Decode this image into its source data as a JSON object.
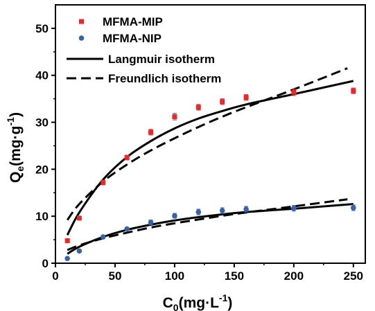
{
  "chart_data": {
    "type": "scatter",
    "xlabel": {
      "main": "C",
      "sub": "0",
      "rest": "(mg·L",
      "sup": "-1",
      "end": ")"
    },
    "ylabel": {
      "main": "Q",
      "sub": "e",
      "rest": "(mg·g",
      "sup": "-1",
      "end": ")"
    },
    "xlim": [
      0,
      260
    ],
    "ylim": [
      0,
      55
    ],
    "xticks": [
      0,
      50,
      100,
      150,
      200,
      250
    ],
    "yticks": [
      0,
      10,
      20,
      30,
      40,
      50
    ],
    "legend_position": "top-left",
    "grid": false,
    "series": [
      {
        "name": "MFMA-MIP",
        "kind": "points",
        "marker": "square",
        "color": "#e8282b",
        "x": [
          10,
          20,
          40,
          60,
          80,
          100,
          120,
          140,
          160,
          200,
          250
        ],
        "y": [
          4.8,
          9.6,
          17.2,
          22.5,
          27.9,
          31.2,
          33.2,
          34.4,
          35.3,
          36.4,
          36.7
        ],
        "err": [
          0.3,
          0.3,
          0.5,
          0.5,
          0.6,
          0.7,
          0.6,
          0.6,
          0.6,
          0.7,
          0.6
        ]
      },
      {
        "name": "MFMA-NIP",
        "kind": "points",
        "marker": "circle",
        "color": "#3a62a8",
        "x": [
          10,
          20,
          40,
          60,
          80,
          100,
          120,
          140,
          160,
          200,
          250
        ],
        "y": [
          1.0,
          2.6,
          5.6,
          7.3,
          8.7,
          10.1,
          10.9,
          11.2,
          11.5,
          11.7,
          11.8
        ],
        "err": [
          0.2,
          0.2,
          0.3,
          0.3,
          0.5,
          0.5,
          0.6,
          0.6,
          0.6,
          0.6,
          0.6
        ]
      },
      {
        "name": "Langmuir isotherm",
        "kind": "line",
        "style": "solid",
        "color": "#000000",
        "x": [
          10,
          20,
          40,
          60,
          80,
          100,
          120,
          140,
          160,
          200,
          250
        ],
        "mip_y": [
          6.0,
          10.8,
          17.8,
          22.6,
          26.0,
          28.7,
          30.8,
          32.4,
          33.8,
          36.0,
          38.8
        ],
        "nip_y": [
          2.0,
          3.5,
          5.6,
          7.1,
          8.2,
          9.1,
          9.8,
          10.4,
          10.9,
          11.6,
          12.6
        ]
      },
      {
        "name": "Freundlich isotherm",
        "kind": "line",
        "style": "dashed",
        "color": "#000000",
        "x": [
          10,
          20,
          40,
          60,
          80,
          100,
          120,
          140,
          160,
          200,
          245
        ],
        "mip_y": [
          9.2,
          12.6,
          17.4,
          21.0,
          24.0,
          26.6,
          29.0,
          31.2,
          33.2,
          37.0,
          41.5
        ],
        "nip_y": [
          2.8,
          3.8,
          5.3,
          6.5,
          7.6,
          8.5,
          9.3,
          10.1,
          10.8,
          12.1,
          13.6
        ]
      }
    ]
  }
}
